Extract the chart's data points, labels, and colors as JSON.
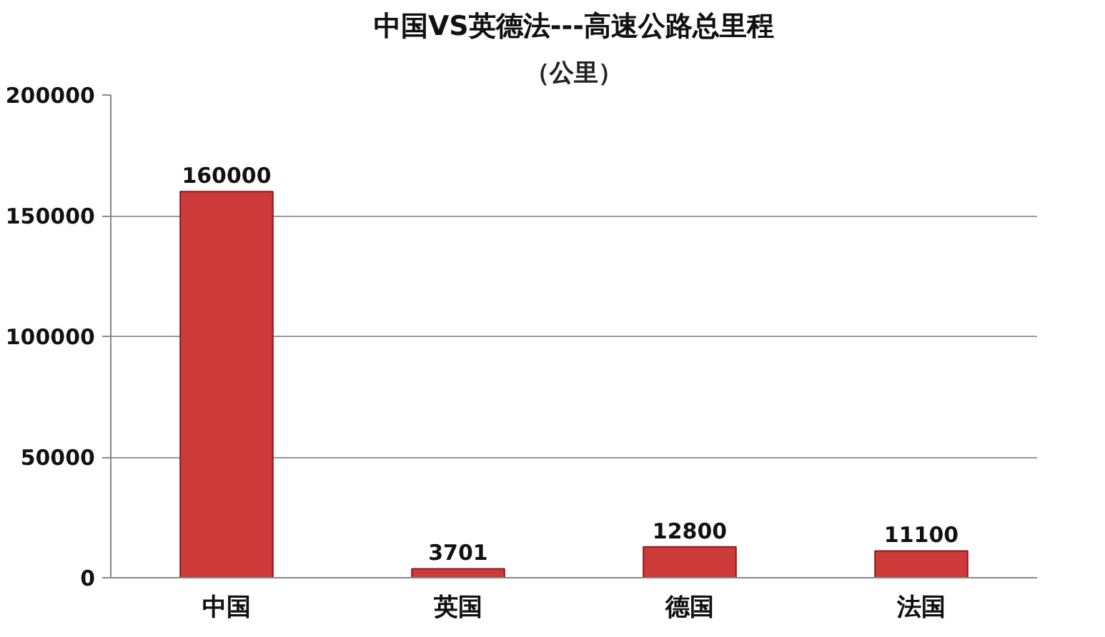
{
  "chart_data": {
    "type": "bar",
    "title": "中国VS英德法---高速公路总里程",
    "subtitle": "（公里）",
    "categories": [
      "中国",
      "英国",
      "德国",
      "法国"
    ],
    "values": [
      160000,
      3701,
      12800,
      11100
    ],
    "color": "#cc3a3a",
    "ylim": [
      0,
      200000
    ],
    "yticks": [
      0,
      50000,
      100000,
      150000,
      200000
    ],
    "grid": "y",
    "data_labels": true
  }
}
